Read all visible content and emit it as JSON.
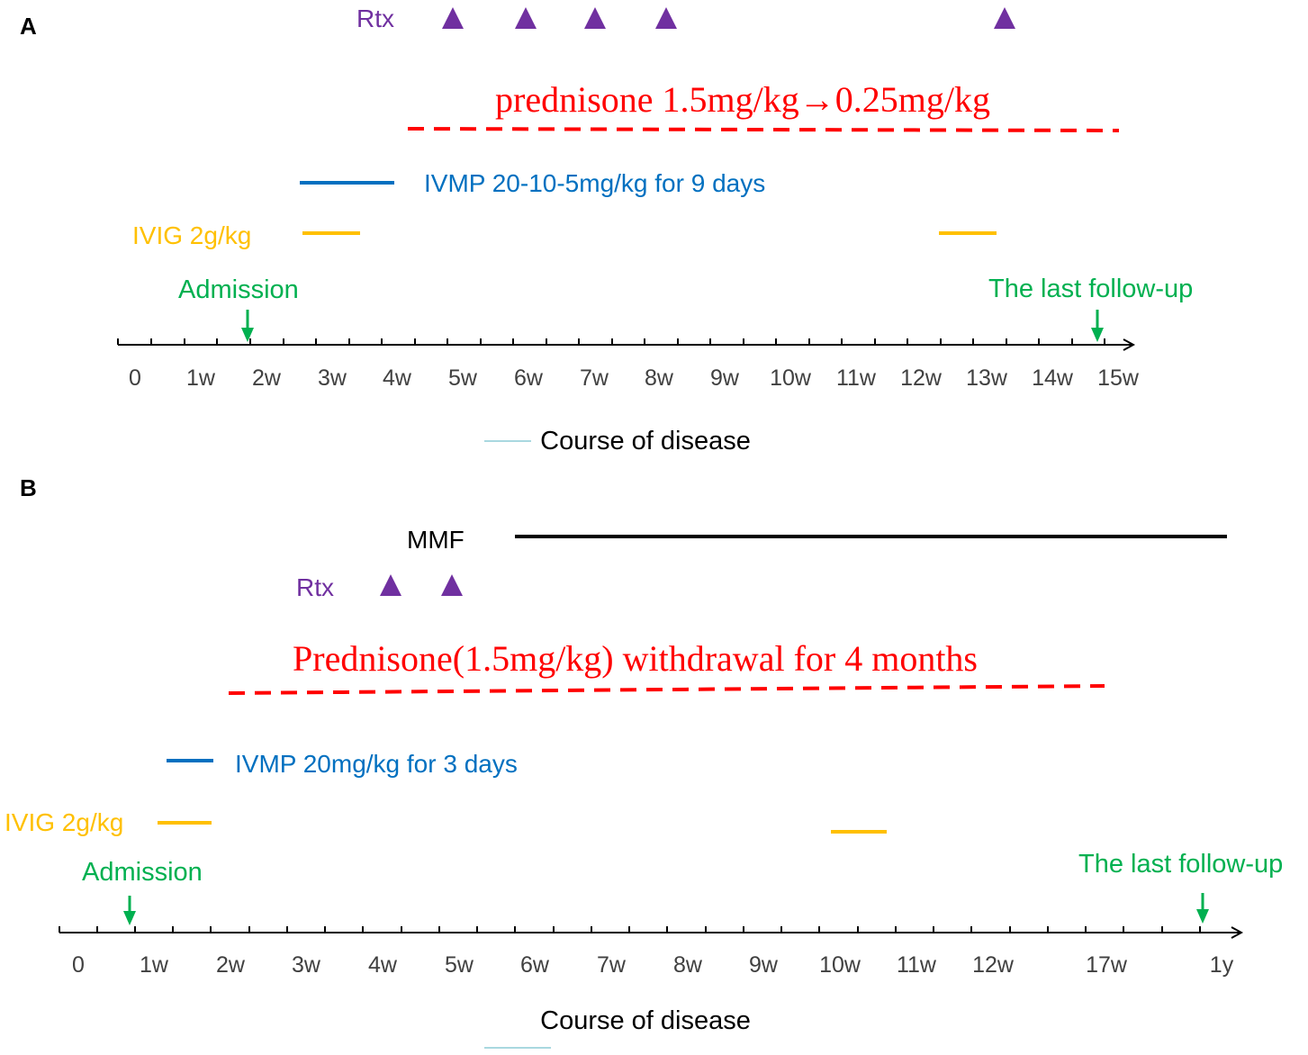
{
  "colors": {
    "rtx": "#7030a0",
    "prednisone": "#ff0000",
    "ivmp": "#0070c0",
    "ivig": "#ffc000",
    "event": "#00b050",
    "mmf": "#000000",
    "axis": "#000000",
    "tick_label": "#404040"
  },
  "panel_a": {
    "label": "A",
    "rtx_label": "Rtx",
    "rtx_doses": [
      "5w",
      "6w",
      "7w",
      "8w",
      "13w"
    ],
    "prednisone_label": "prednisone 1.5mg/kg→0.25mg/kg",
    "ivmp_label": "IVMP 20-10-5mg/kg for 9 days",
    "ivig_label": "IVIG 2g/kg",
    "admission_label": "Admission",
    "last_followup_label": "The last follow-up",
    "ticks": [
      "0",
      "1w",
      "2w",
      "3w",
      "4w",
      "5w",
      "6w",
      "7w",
      "8w",
      "9w",
      "10w",
      "11w",
      "12w",
      "13w",
      "14w",
      "15w"
    ],
    "axis_title": "Course of disease"
  },
  "panel_b": {
    "label": "B",
    "mmf_label": "MMF",
    "rtx_label": "Rtx",
    "rtx_doses": [
      "4w",
      "5w"
    ],
    "prednisone_label": "Prednisone(1.5mg/kg) withdrawal for 4 months",
    "ivmp_label": "IVMP 20mg/kg for 3 days",
    "ivig_label": "IVIG 2g/kg",
    "admission_label": "Admission",
    "last_followup_label": "The last follow-up",
    "ticks": [
      "0",
      "1w",
      "2w",
      "3w",
      "4w",
      "5w",
      "6w",
      "7w",
      "8w",
      "9w",
      "10w",
      "11w",
      "12w",
      "17w",
      "1y"
    ],
    "axis_title": "Course of disease"
  }
}
